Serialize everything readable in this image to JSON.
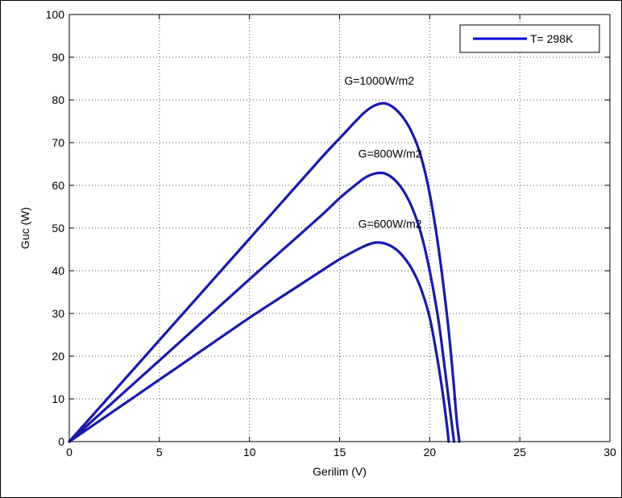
{
  "chart_data": {
    "type": "line",
    "title": "",
    "xlabel": "Gerilim (V)",
    "ylabel": "Guc (W)",
    "xlim": [
      0,
      30
    ],
    "ylim": [
      0,
      100
    ],
    "xticks": [
      0,
      5,
      10,
      15,
      20,
      25,
      30
    ],
    "yticks": [
      0,
      10,
      20,
      30,
      40,
      50,
      60,
      70,
      80,
      90,
      100
    ],
    "grid": true,
    "legend": {
      "position": "top-right",
      "entries": [
        {
          "label": "T= 298K",
          "color": "#0000cc"
        }
      ]
    },
    "series_color": "#1a1aaa",
    "series": [
      {
        "annotation": "G=1000W/m2",
        "annotation_pos": [
          17.2,
          84.5
        ],
        "points": [
          [
            0,
            0
          ],
          [
            2,
            9.5
          ],
          [
            4,
            19
          ],
          [
            6,
            28.5
          ],
          [
            8,
            38
          ],
          [
            10,
            47.5
          ],
          [
            12,
            57
          ],
          [
            14,
            66.5
          ],
          [
            15,
            71
          ],
          [
            16,
            75.5
          ],
          [
            16.5,
            77.5
          ],
          [
            17,
            78.8
          ],
          [
            17.5,
            79.2
          ],
          [
            18,
            78.2
          ],
          [
            18.5,
            76
          ],
          [
            19,
            72.5
          ],
          [
            19.5,
            67
          ],
          [
            20,
            58
          ],
          [
            20.5,
            45
          ],
          [
            21,
            28
          ],
          [
            21.3,
            15
          ],
          [
            21.5,
            5
          ],
          [
            21.65,
            0
          ]
        ]
      },
      {
        "annotation": "G=800W/m2",
        "annotation_pos": [
          17.8,
          67.5
        ],
        "points": [
          [
            0,
            0
          ],
          [
            2,
            7.6
          ],
          [
            4,
            15.2
          ],
          [
            6,
            22.8
          ],
          [
            8,
            30.4
          ],
          [
            10,
            38
          ],
          [
            12,
            45.5
          ],
          [
            14,
            53
          ],
          [
            15,
            57
          ],
          [
            16,
            60.5
          ],
          [
            16.5,
            62
          ],
          [
            17,
            62.8
          ],
          [
            17.5,
            62.8
          ],
          [
            18,
            61.5
          ],
          [
            18.5,
            59
          ],
          [
            19,
            55
          ],
          [
            19.5,
            49
          ],
          [
            20,
            40
          ],
          [
            20.5,
            28
          ],
          [
            20.9,
            15
          ],
          [
            21.2,
            5
          ],
          [
            21.35,
            0
          ]
        ]
      },
      {
        "annotation": "G=600W/m2",
        "annotation_pos": [
          17.8,
          51
        ],
        "points": [
          [
            0,
            0
          ],
          [
            2,
            5.8
          ],
          [
            4,
            11.6
          ],
          [
            6,
            17.4
          ],
          [
            8,
            23.2
          ],
          [
            10,
            29
          ],
          [
            12,
            34.5
          ],
          [
            14,
            40
          ],
          [
            15,
            42.7
          ],
          [
            16,
            45
          ],
          [
            16.5,
            46
          ],
          [
            17,
            46.6
          ],
          [
            17.5,
            46.4
          ],
          [
            18,
            45.4
          ],
          [
            18.5,
            43.5
          ],
          [
            19,
            40.5
          ],
          [
            19.5,
            36
          ],
          [
            20,
            29
          ],
          [
            20.4,
            20
          ],
          [
            20.7,
            12
          ],
          [
            20.95,
            4
          ],
          [
            21.05,
            0
          ]
        ]
      }
    ]
  }
}
